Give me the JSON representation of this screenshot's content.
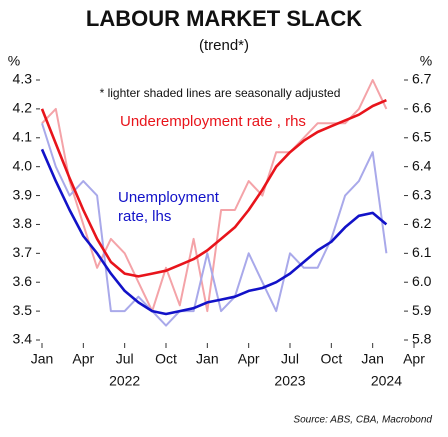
{
  "chart_data": {
    "type": "line",
    "title": "LABOUR MARKET SLACK",
    "subtitle": "(trend*)",
    "y_unit": "%",
    "y2_unit": "%",
    "annotation": "* lighter shaded lines are seasonally adjusted",
    "source": "Source: ABS, CBA, Macrobond",
    "x": [
      "2022-01",
      "2022-02",
      "2022-03",
      "2022-04",
      "2022-05",
      "2022-06",
      "2022-07",
      "2022-08",
      "2022-09",
      "2022-10",
      "2022-11",
      "2022-12",
      "2023-01",
      "2023-02",
      "2023-03",
      "2023-04",
      "2023-05",
      "2023-06",
      "2023-07",
      "2023-08",
      "2023-09",
      "2023-10",
      "2023-11",
      "2023-12",
      "2024-01",
      "2024-02"
    ],
    "xlim": [
      "2022-01",
      "2024-04"
    ],
    "xticks": [
      {
        "value": "2022-01",
        "label": "Jan"
      },
      {
        "value": "2022-04",
        "label": "Apr"
      },
      {
        "value": "2022-07",
        "label": "Jul"
      },
      {
        "value": "2022-10",
        "label": "Oct"
      },
      {
        "value": "2023-01",
        "label": "Jan"
      },
      {
        "value": "2023-04",
        "label": "Apr"
      },
      {
        "value": "2023-07",
        "label": "Jul"
      },
      {
        "value": "2023-10",
        "label": "Oct"
      },
      {
        "value": "2024-01",
        "label": "Jan"
      },
      {
        "value": "2024-04",
        "label": "Apr"
      }
    ],
    "year_labels": [
      {
        "value": "2022-07",
        "label": "2022"
      },
      {
        "value": "2023-07",
        "label": "2023"
      },
      {
        "value": "2024-02",
        "label": "2024"
      }
    ],
    "ylim": [
      3.4,
      4.3
    ],
    "yticks": [
      3.4,
      3.5,
      3.6,
      3.7,
      3.8,
      3.9,
      {
        "value": 4,
        "label": "4.0"
      },
      4.1,
      4.2,
      4.3
    ],
    "y2lim": [
      5.8,
      6.7
    ],
    "y2ticks": [
      5.8,
      5.9,
      {
        "value": 6,
        "label": "6.0"
      },
      6.1,
      6.2,
      6.3,
      6.4,
      6.5,
      6.6,
      6.7
    ],
    "series": [
      {
        "color": "#f4a3a8",
        "axis": "y2",
        "values": [
          6.55,
          6.6,
          6.35,
          6.2,
          6.05,
          6.15,
          6.1,
          6.0,
          5.9,
          6.05,
          5.92,
          6.15,
          5.9,
          6.25,
          6.25,
          6.35,
          6.3,
          6.45,
          6.45,
          6.5,
          6.55,
          6.55,
          6.55,
          6.6,
          6.7,
          6.6
        ]
      },
      {
        "color": "#a9a9ea",
        "axis": "y",
        "values": [
          4.15,
          4.0,
          3.9,
          3.95,
          3.9,
          3.5,
          3.5,
          3.55,
          3.5,
          3.45,
          3.5,
          3.5,
          3.7,
          3.5,
          3.55,
          3.7,
          3.6,
          3.5,
          3.7,
          3.65,
          3.65,
          3.75,
          3.9,
          3.95,
          4.05,
          3.7
        ]
      },
      {
        "name": "Underemployment rate , rhs",
        "color": "#e8141b",
        "axis": "y2",
        "values": [
          6.6,
          6.48,
          6.36,
          6.25,
          6.15,
          6.07,
          6.03,
          6.02,
          6.03,
          6.04,
          6.06,
          6.08,
          6.11,
          6.15,
          6.19,
          6.25,
          6.32,
          6.4,
          6.45,
          6.49,
          6.52,
          6.54,
          6.56,
          6.58,
          6.61,
          6.63
        ]
      },
      {
        "name": "Unemployment rate, lhs",
        "color": "#1212c8",
        "axis": "y",
        "values": [
          4.06,
          3.95,
          3.85,
          3.76,
          3.7,
          3.63,
          3.57,
          3.53,
          3.5,
          3.49,
          3.5,
          3.51,
          3.53,
          3.54,
          3.55,
          3.57,
          3.58,
          3.6,
          3.63,
          3.67,
          3.71,
          3.74,
          3.79,
          3.83,
          3.84,
          3.8
        ]
      }
    ]
  }
}
